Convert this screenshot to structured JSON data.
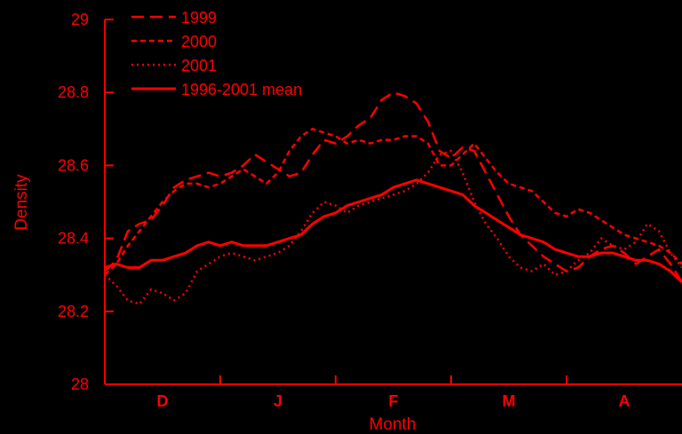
{
  "chart_data": {
    "type": "line",
    "xlabel": "Month",
    "ylabel": "Density",
    "ylim": [
      28,
      29
    ],
    "xlim": [
      0,
      5
    ],
    "yticks": [
      "28",
      "28.2",
      "28.4",
      "28.6",
      "28.8",
      "29"
    ],
    "ytick_values": [
      28,
      28.2,
      28.4,
      28.6,
      28.8,
      29
    ],
    "month_labels": [
      "D",
      "J",
      "F",
      "M",
      "A"
    ],
    "month_boundaries": [
      0,
      1,
      2,
      3,
      4,
      5
    ],
    "grid": false,
    "legend_position": "top-left",
    "line_color": "#ff0000",
    "series": [
      {
        "name": "1999",
        "dash": "long-dash",
        "x": [
          0,
          0.1,
          0.2,
          0.3,
          0.4,
          0.5,
          0.6,
          0.7,
          0.8,
          0.9,
          1.0,
          1.1,
          1.2,
          1.3,
          1.4,
          1.5,
          1.6,
          1.7,
          1.8,
          1.9,
          2.0,
          2.1,
          2.2,
          2.3,
          2.4,
          2.5,
          2.6,
          2.7,
          2.8,
          2.9,
          3.0,
          3.1,
          3.2,
          3.3,
          3.4,
          3.5,
          3.6,
          3.7,
          3.8,
          3.9,
          4.0,
          4.1,
          4.2,
          4.3,
          4.4,
          4.5,
          4.6,
          4.7,
          4.8,
          4.9,
          5.0
        ],
        "y": [
          28.31,
          28.34,
          28.42,
          28.44,
          28.45,
          28.49,
          28.54,
          28.56,
          28.57,
          28.58,
          28.57,
          28.58,
          28.6,
          28.63,
          28.61,
          28.59,
          28.57,
          28.58,
          28.63,
          28.67,
          28.66,
          28.68,
          28.71,
          28.73,
          28.78,
          28.8,
          28.79,
          28.77,
          28.72,
          28.64,
          28.62,
          28.65,
          28.64,
          28.58,
          28.52,
          28.46,
          28.41,
          28.38,
          28.35,
          28.33,
          28.31,
          28.32,
          28.35,
          28.37,
          28.38,
          28.36,
          28.33,
          28.35,
          28.37,
          28.33,
          28.28
        ]
      },
      {
        "name": "2000",
        "dash": "short-dash",
        "x": [
          0,
          0.1,
          0.2,
          0.3,
          0.4,
          0.5,
          0.6,
          0.7,
          0.8,
          0.9,
          1.0,
          1.1,
          1.2,
          1.3,
          1.4,
          1.5,
          1.6,
          1.7,
          1.8,
          1.9,
          2.0,
          2.1,
          2.2,
          2.3,
          2.4,
          2.5,
          2.6,
          2.7,
          2.8,
          2.9,
          3.0,
          3.1,
          3.2,
          3.3,
          3.4,
          3.5,
          3.6,
          3.7,
          3.8,
          3.9,
          4.0,
          4.1,
          4.2,
          4.3,
          4.4,
          4.5,
          4.6,
          4.7,
          4.8,
          4.9,
          5.0
        ],
        "y": [
          28.3,
          28.33,
          28.38,
          28.42,
          28.46,
          28.5,
          28.53,
          28.55,
          28.55,
          28.54,
          28.55,
          28.57,
          28.59,
          28.57,
          28.55,
          28.58,
          28.64,
          28.68,
          28.7,
          28.69,
          28.68,
          28.66,
          28.67,
          28.66,
          28.67,
          28.67,
          28.68,
          28.68,
          28.66,
          28.6,
          28.6,
          28.63,
          28.66,
          28.62,
          28.58,
          28.55,
          28.54,
          28.53,
          28.5,
          28.47,
          28.46,
          28.48,
          28.47,
          28.45,
          28.43,
          28.41,
          28.4,
          28.39,
          28.38,
          28.36,
          28.33
        ]
      },
      {
        "name": "2001",
        "dash": "dot",
        "x": [
          0,
          0.1,
          0.2,
          0.3,
          0.4,
          0.5,
          0.6,
          0.7,
          0.8,
          0.9,
          1.0,
          1.1,
          1.2,
          1.3,
          1.4,
          1.5,
          1.6,
          1.7,
          1.8,
          1.9,
          2.0,
          2.1,
          2.2,
          2.3,
          2.4,
          2.5,
          2.6,
          2.7,
          2.8,
          2.9,
          3.0,
          3.1,
          3.2,
          3.3,
          3.4,
          3.5,
          3.6,
          3.7,
          3.8,
          3.9,
          4.0,
          4.1,
          4.2,
          4.3,
          4.4,
          4.5,
          4.6,
          4.7,
          4.8,
          4.9,
          5.0
        ],
        "y": [
          28.3,
          28.27,
          28.23,
          28.22,
          28.26,
          28.25,
          28.23,
          28.25,
          28.31,
          28.33,
          28.35,
          28.36,
          28.35,
          28.34,
          28.35,
          28.36,
          28.38,
          28.42,
          28.47,
          28.5,
          28.49,
          28.47,
          28.49,
          28.5,
          28.51,
          28.52,
          28.53,
          28.55,
          28.58,
          28.63,
          28.64,
          28.58,
          28.5,
          28.44,
          28.4,
          28.35,
          28.32,
          28.31,
          28.33,
          28.3,
          28.31,
          28.34,
          28.36,
          28.4,
          28.38,
          28.37,
          28.39,
          28.44,
          28.42,
          28.36,
          28.32
        ]
      },
      {
        "name": "1996-2001 mean",
        "dash": "solid",
        "x": [
          0,
          0.1,
          0.2,
          0.3,
          0.4,
          0.5,
          0.6,
          0.7,
          0.8,
          0.9,
          1.0,
          1.1,
          1.2,
          1.3,
          1.4,
          1.5,
          1.6,
          1.7,
          1.8,
          1.9,
          2.0,
          2.1,
          2.2,
          2.3,
          2.4,
          2.5,
          2.6,
          2.7,
          2.8,
          2.9,
          3.0,
          3.1,
          3.2,
          3.3,
          3.4,
          3.5,
          3.6,
          3.7,
          3.8,
          3.9,
          4.0,
          4.1,
          4.2,
          4.3,
          4.4,
          4.5,
          4.6,
          4.7,
          4.8,
          4.9,
          5.0
        ],
        "y": [
          28.32,
          28.33,
          28.32,
          28.32,
          28.34,
          28.34,
          28.35,
          28.36,
          28.38,
          28.39,
          28.38,
          28.39,
          28.38,
          28.38,
          28.38,
          28.39,
          28.4,
          28.41,
          28.44,
          28.46,
          28.47,
          28.49,
          28.5,
          28.51,
          28.52,
          28.54,
          28.55,
          28.56,
          28.55,
          28.54,
          28.53,
          28.52,
          28.49,
          28.47,
          28.45,
          28.43,
          28.41,
          28.4,
          28.39,
          28.37,
          28.36,
          28.35,
          28.35,
          28.36,
          28.36,
          28.35,
          28.34,
          28.34,
          28.33,
          28.31,
          28.28
        ]
      }
    ]
  }
}
